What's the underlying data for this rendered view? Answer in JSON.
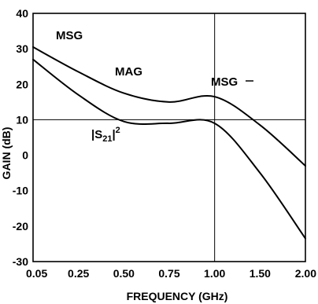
{
  "chart_data": {
    "type": "line",
    "title": "",
    "xlabel": "FREQUENCY (GHz)",
    "ylabel": "GAIN (dB)",
    "x_ticks": [
      "0.05",
      "0.25",
      "0.50",
      "0.75",
      "1.00",
      "1.50",
      "2.00"
    ],
    "ylim": [
      -30,
      40
    ],
    "y_ticks": [
      -30,
      -20,
      -10,
      0,
      10,
      20,
      30,
      40
    ],
    "grid": "vertical at 1.00 and horizontal at 10",
    "series": [
      {
        "name": "MSG/MAG",
        "points": [
          {
            "x": "0.05",
            "y": 30.5
          },
          {
            "x": "0.25",
            "y": 23.5
          },
          {
            "x": "0.50",
            "y": 17.5
          },
          {
            "x": "0.75",
            "y": 15.0
          },
          {
            "x": "1.00",
            "y": 16.5
          },
          {
            "x": "1.50",
            "y": 8.5
          },
          {
            "x": "2.00",
            "y": -3.0
          }
        ]
      },
      {
        "name": "|S21|²",
        "points": [
          {
            "x": "0.05",
            "y": 27.0
          },
          {
            "x": "0.25",
            "y": 17.0
          },
          {
            "x": "0.50",
            "y": 9.5
          },
          {
            "x": "0.75",
            "y": 9.0
          },
          {
            "x": "1.00",
            "y": 9.0
          },
          {
            "x": "1.50",
            "y": -5.0
          },
          {
            "x": "2.00",
            "y": -23.5
          }
        ]
      }
    ],
    "annotations": {
      "msg_left": "MSG",
      "mag": "MAG",
      "msg_right": "MSG",
      "s21_base": "|S",
      "s21_sub": "21",
      "s21_tail": "|",
      "s21_sup": "2"
    }
  }
}
